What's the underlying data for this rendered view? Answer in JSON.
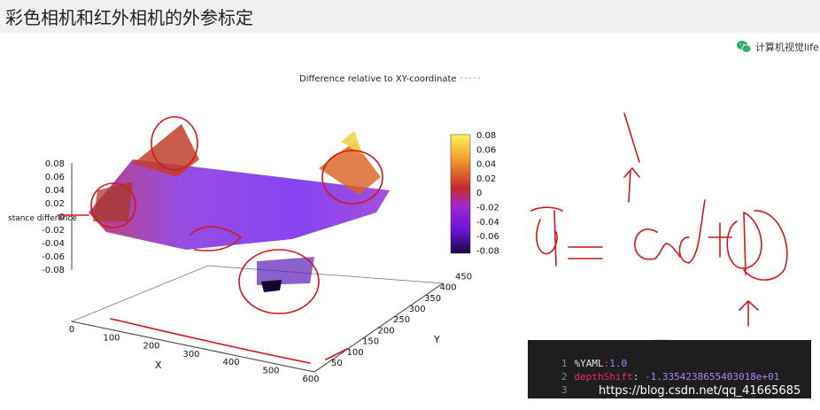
{
  "title": "彩色相机和红外相机的外参标定",
  "wechat": {
    "label": "计算机视觉life",
    "icon": "wechat-icon"
  },
  "plot": {
    "title": "Difference relative to XY-coordinate",
    "z_axis_label": "stance difference",
    "x_axis_label": "X",
    "y_axis_label": "Y",
    "z_ticks": [
      "0.08",
      "0.06",
      "0.04",
      "0.02",
      "0",
      "-0.02",
      "-0.04",
      "-0.06",
      "-0.08"
    ],
    "x_ticks": [
      "0",
      "100",
      "200",
      "300",
      "400",
      "500",
      "600"
    ],
    "y_ticks": [
      "50",
      "100",
      "150",
      "200",
      "250",
      "300",
      "350",
      "400",
      "450"
    ],
    "colorbar_ticks": [
      "0.08",
      "0.06",
      "0.04",
      "0.02",
      "0",
      "-0.02",
      "-0.04",
      "-0.06",
      "-0.08"
    ],
    "colors": {
      "low": "#1a0a5a",
      "mid": "#8a2be2",
      "zero": "#d0402a",
      "high": "#ffe34d"
    }
  },
  "code": {
    "lines": [
      {
        "num": "1",
        "key": "%YAML",
        "sep": ":",
        "value": "1.0"
      },
      {
        "num": "2",
        "key": "depthShift",
        "sep": ":",
        "value": " -1.3354238655403018e+01"
      },
      {
        "num": "3",
        "key": "",
        "sep": "",
        "value": ""
      }
    ]
  },
  "watermark": "https://blog.csdn.net/qq_41665685",
  "annotation_color": "#d4151b"
}
